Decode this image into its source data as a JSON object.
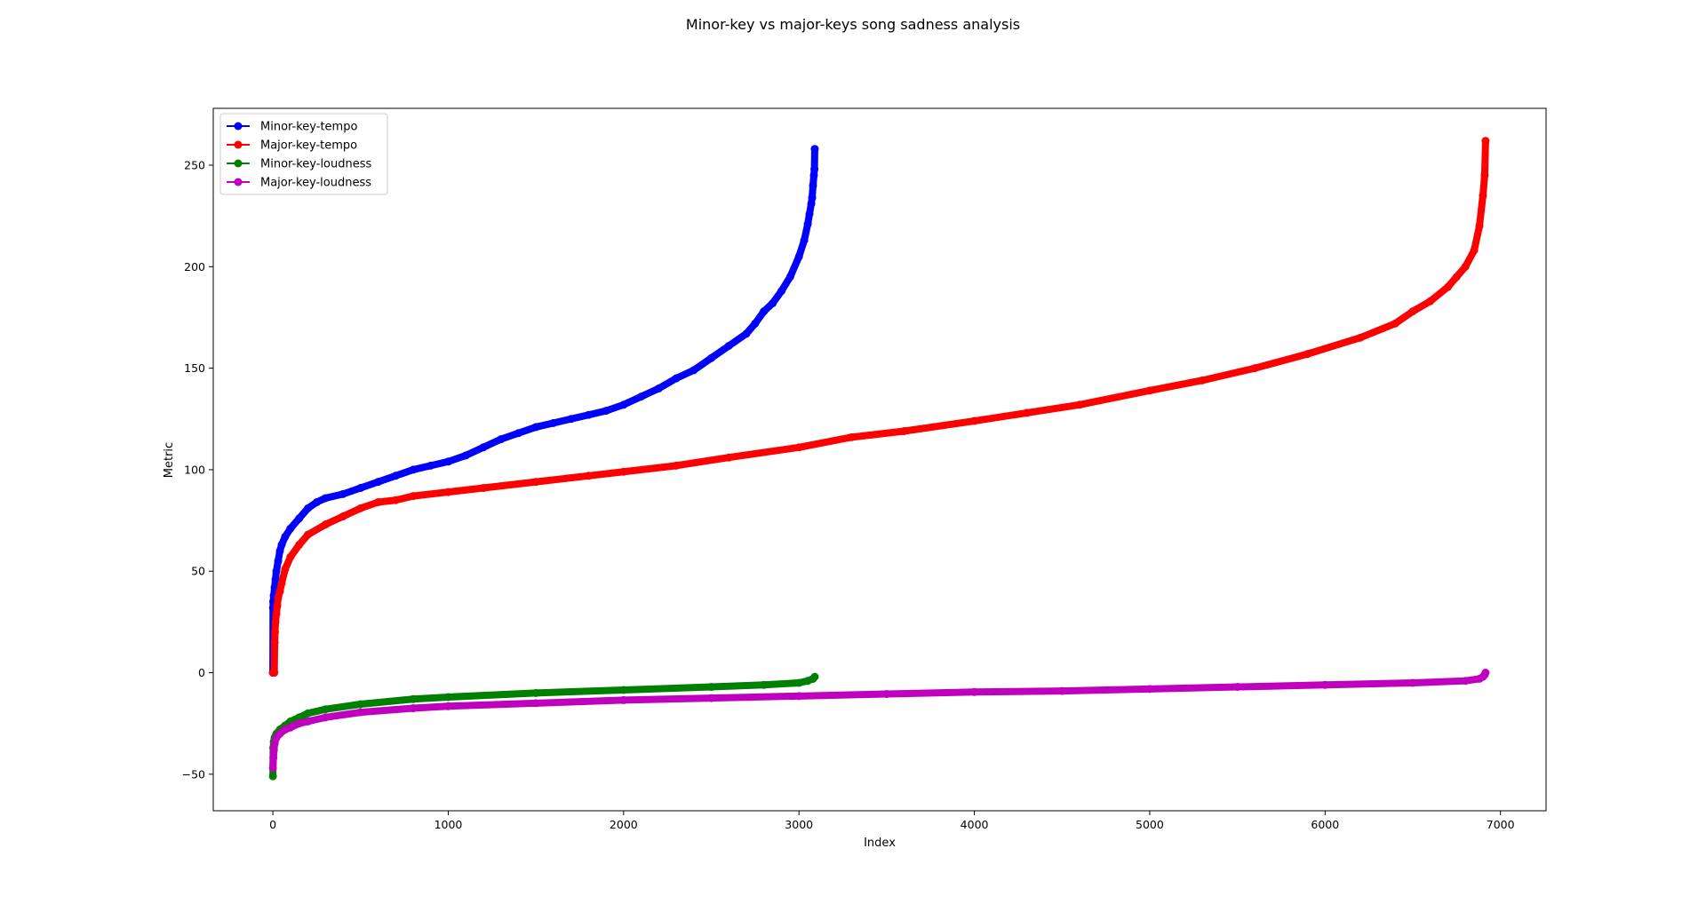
{
  "chart_data": {
    "type": "line",
    "title": "Minor-key vs major-keys song sadness analysis",
    "xlabel": "Index",
    "ylabel": "Metric",
    "xlim": [
      -340,
      7260
    ],
    "ylim": [
      -68,
      278
    ],
    "xticks": [
      0,
      1000,
      2000,
      3000,
      4000,
      5000,
      6000,
      7000
    ],
    "yticks": [
      -50,
      0,
      50,
      100,
      150,
      200,
      250
    ],
    "ytick_labels": [
      "−50",
      "0",
      "50",
      "100",
      "150",
      "200",
      "250"
    ],
    "grid": false,
    "legend_position": "top-left",
    "series": [
      {
        "name": "Minor-key-tempo",
        "color": "#0000ff",
        "x": [
          0,
          1,
          2,
          5,
          10,
          15,
          20,
          30,
          40,
          50,
          70,
          100,
          150,
          200,
          250,
          300,
          400,
          500,
          600,
          700,
          800,
          900,
          1000,
          1100,
          1200,
          1300,
          1400,
          1500,
          1600,
          1700,
          1800,
          1900,
          2000,
          2100,
          2200,
          2300,
          2400,
          2500,
          2600,
          2700,
          2750,
          2800,
          2850,
          2900,
          2950,
          3000,
          3030,
          3050,
          3060,
          3070,
          3075,
          3080,
          3085,
          3088,
          3090
        ],
        "y": [
          0,
          32,
          35,
          38,
          42,
          46,
          50,
          55,
          60,
          63,
          67,
          71,
          76,
          81,
          84,
          86,
          88,
          91,
          94,
          97,
          100,
          102,
          104,
          107,
          111,
          115,
          118,
          121,
          123,
          125,
          127,
          129,
          132,
          136,
          140,
          145,
          149,
          155,
          161,
          167,
          172,
          178,
          182,
          188,
          195,
          205,
          213,
          221,
          226,
          231,
          234,
          240,
          245,
          248,
          258
        ]
      },
      {
        "name": "Major-key-tempo",
        "color": "#ff0000",
        "x": [
          0,
          5,
          8,
          10,
          12,
          15,
          20,
          25,
          30,
          40,
          50,
          70,
          100,
          150,
          200,
          300,
          400,
          500,
          600,
          700,
          800,
          1000,
          1200,
          1500,
          1800,
          2000,
          2300,
          2600,
          3000,
          3300,
          3600,
          4000,
          4300,
          4600,
          5000,
          5300,
          5600,
          5900,
          6200,
          6400,
          6500,
          6600,
          6700,
          6750,
          6800,
          6850,
          6880,
          6900,
          6910,
          6915
        ],
        "y": [
          0,
          0,
          0,
          15,
          20,
          25,
          29,
          33,
          37,
          40,
          44,
          51,
          57,
          63,
          68,
          73,
          77,
          81,
          84,
          85,
          87,
          89,
          91,
          94,
          97,
          99,
          102,
          106,
          111,
          116,
          119,
          124,
          128,
          132,
          139,
          144,
          150,
          157,
          165,
          172,
          178,
          183,
          190,
          195,
          200,
          208,
          220,
          235,
          245,
          262
        ]
      },
      {
        "name": "Minor-key-loudness",
        "color": "#008000",
        "x": [
          0,
          2,
          5,
          10,
          20,
          40,
          70,
          100,
          150,
          200,
          300,
          500,
          800,
          1000,
          1500,
          2000,
          2500,
          2800,
          3000,
          3050,
          3080,
          3090
        ],
        "y": [
          -51,
          -37,
          -34,
          -32,
          -30,
          -28,
          -26,
          -24,
          -22,
          -20,
          -18,
          -15.5,
          -13,
          -12,
          -10,
          -8.5,
          -7,
          -6,
          -5,
          -4,
          -3,
          -2
        ]
      },
      {
        "name": "Major-key-loudness",
        "color": "#bf00bf",
        "x": [
          0,
          3,
          6,
          10,
          20,
          40,
          70,
          100,
          150,
          200,
          300,
          500,
          800,
          1000,
          1500,
          2000,
          2500,
          3000,
          3500,
          4000,
          4500,
          5000,
          5500,
          6000,
          6500,
          6800,
          6880,
          6900,
          6910,
          6915
        ],
        "y": [
          -47,
          -42,
          -38,
          -35,
          -32,
          -30,
          -28,
          -27,
          -25,
          -24,
          -22,
          -19.5,
          -17.5,
          -16.5,
          -15,
          -13.5,
          -12.5,
          -11.5,
          -10.5,
          -9.5,
          -9,
          -8,
          -7,
          -6,
          -5,
          -4,
          -3,
          -2,
          -1,
          0
        ]
      }
    ]
  }
}
